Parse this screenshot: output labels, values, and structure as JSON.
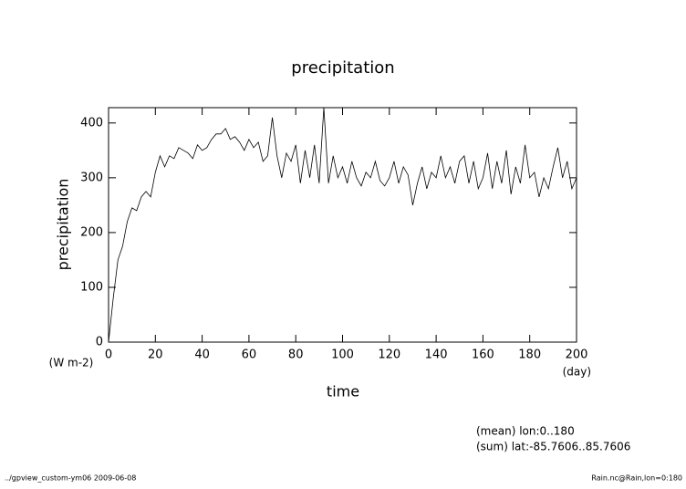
{
  "chart_data": {
    "type": "line",
    "title": "precipitation",
    "y_label": "precipitation",
    "x_label": "time",
    "y_unit": "(W m-2)",
    "x_unit": "(day)",
    "notes": [
      "(mean) lon:0..180",
      "(sum) lat:-85.7606..85.7606"
    ],
    "footer_left": "../gpview_custom-ym06  2009-06-08",
    "footer_right": "Rain.nc@Rain,lon=0:180",
    "xlim": [
      0,
      200
    ],
    "ylim": [
      0,
      428
    ],
    "xticks": [
      0,
      20,
      40,
      60,
      80,
      100,
      120,
      140,
      160,
      180,
      200
    ],
    "yticks": [
      0,
      100,
      200,
      300,
      400
    ],
    "x": [
      0,
      2,
      4,
      6,
      8,
      10,
      12,
      14,
      16,
      18,
      20,
      22,
      24,
      26,
      28,
      30,
      32,
      34,
      36,
      38,
      40,
      42,
      44,
      46,
      48,
      50,
      52,
      54,
      56,
      58,
      60,
      62,
      64,
      66,
      68,
      70,
      72,
      74,
      76,
      78,
      80,
      82,
      84,
      86,
      88,
      90,
      92,
      94,
      96,
      98,
      100,
      102,
      104,
      106,
      108,
      110,
      112,
      114,
      116,
      118,
      120,
      122,
      124,
      126,
      128,
      130,
      132,
      134,
      136,
      138,
      140,
      142,
      144,
      146,
      148,
      150,
      152,
      154,
      156,
      158,
      160,
      162,
      164,
      166,
      168,
      170,
      172,
      174,
      176,
      178,
      180,
      182,
      184,
      186,
      188,
      190,
      192,
      194,
      196,
      198,
      200
    ],
    "series": [
      {
        "color": "#000000",
        "values": [
          0,
          80,
          150,
          175,
          220,
          245,
          240,
          265,
          275,
          265,
          310,
          340,
          320,
          340,
          335,
          355,
          350,
          345,
          335,
          360,
          350,
          355,
          370,
          380,
          380,
          390,
          370,
          375,
          365,
          350,
          370,
          355,
          365,
          330,
          340,
          410,
          340,
          300,
          345,
          330,
          360,
          290,
          350,
          300,
          360,
          290,
          428,
          290,
          340,
          300,
          320,
          290,
          330,
          300,
          285,
          310,
          300,
          330,
          295,
          285,
          300,
          330,
          290,
          320,
          305,
          250,
          290,
          320,
          280,
          310,
          300,
          340,
          300,
          320,
          290,
          330,
          340,
          290,
          330,
          280,
          300,
          345,
          280,
          330,
          290,
          350,
          270,
          320,
          290,
          360,
          300,
          310,
          265,
          300,
          280,
          320,
          355,
          300,
          330,
          280,
          300
        ]
      }
    ]
  }
}
